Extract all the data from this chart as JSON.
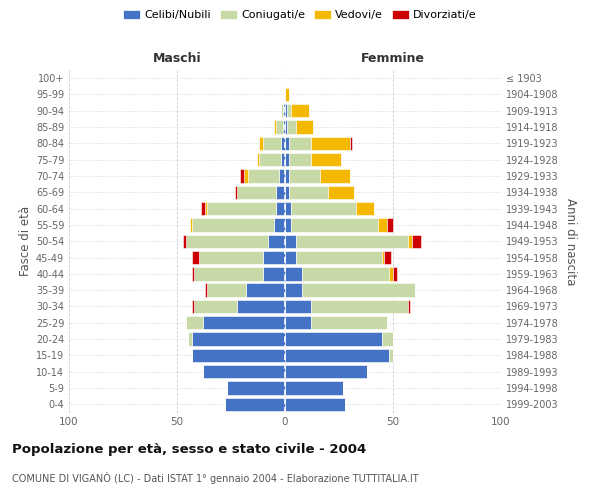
{
  "age_groups": [
    "0-4",
    "5-9",
    "10-14",
    "15-19",
    "20-24",
    "25-29",
    "30-34",
    "35-39",
    "40-44",
    "45-49",
    "50-54",
    "55-59",
    "60-64",
    "65-69",
    "70-74",
    "75-79",
    "80-84",
    "85-89",
    "90-94",
    "95-99",
    "100+"
  ],
  "birth_years": [
    "1999-2003",
    "1994-1998",
    "1989-1993",
    "1984-1988",
    "1979-1983",
    "1974-1978",
    "1969-1973",
    "1964-1968",
    "1959-1963",
    "1954-1958",
    "1949-1953",
    "1944-1948",
    "1939-1943",
    "1934-1938",
    "1929-1933",
    "1924-1928",
    "1919-1923",
    "1914-1918",
    "1909-1913",
    "1904-1908",
    "≤ 1903"
  ],
  "maschi": {
    "celibi": [
      28,
      27,
      38,
      43,
      43,
      38,
      22,
      18,
      10,
      10,
      8,
      5,
      4,
      4,
      3,
      2,
      2,
      1,
      1,
      0,
      0
    ],
    "coniugati": [
      0,
      0,
      0,
      0,
      2,
      8,
      20,
      18,
      32,
      30,
      38,
      38,
      32,
      18,
      14,
      10,
      8,
      3,
      1,
      0,
      0
    ],
    "vedovi": [
      0,
      0,
      0,
      0,
      0,
      0,
      0,
      0,
      0,
      0,
      0,
      1,
      1,
      0,
      2,
      1,
      2,
      1,
      0,
      0,
      0
    ],
    "divorziati": [
      0,
      0,
      0,
      0,
      0,
      0,
      1,
      1,
      1,
      3,
      1,
      0,
      2,
      1,
      2,
      0,
      0,
      0,
      0,
      0,
      0
    ]
  },
  "femmine": {
    "nubili": [
      28,
      27,
      38,
      48,
      45,
      12,
      12,
      8,
      8,
      5,
      5,
      3,
      3,
      2,
      2,
      2,
      2,
      1,
      1,
      0,
      0
    ],
    "coniugate": [
      0,
      0,
      0,
      2,
      5,
      35,
      45,
      52,
      40,
      40,
      52,
      40,
      30,
      18,
      14,
      10,
      10,
      4,
      2,
      0,
      0
    ],
    "vedove": [
      0,
      0,
      0,
      0,
      0,
      0,
      0,
      0,
      2,
      1,
      2,
      4,
      8,
      12,
      14,
      14,
      18,
      8,
      8,
      2,
      0
    ],
    "divorziate": [
      0,
      0,
      0,
      0,
      0,
      0,
      1,
      0,
      2,
      3,
      4,
      3,
      0,
      0,
      0,
      0,
      1,
      0,
      0,
      0,
      0
    ]
  },
  "colors": {
    "celibi_nubili": "#4472c4",
    "coniugati": "#c8d9a8",
    "vedovi": "#f5b800",
    "divorziati": "#cc0000"
  },
  "title": "Popolazione per età, sesso e stato civile - 2004",
  "subtitle": "COMUNE DI VIGANÒ (LC) - Dati ISTAT 1° gennaio 2004 - Elaborazione TUTTITALIA.IT",
  "xlabel_left": "Maschi",
  "xlabel_right": "Femmine",
  "ylabel_left": "Fasce di età",
  "ylabel_right": "Anni di nascita",
  "xlim": 100,
  "legend_labels": [
    "Celibi/Nubili",
    "Coniugati/e",
    "Vedovi/e",
    "Divorziati/e"
  ],
  "background_color": "#ffffff",
  "grid_color": "#c8c8c8"
}
